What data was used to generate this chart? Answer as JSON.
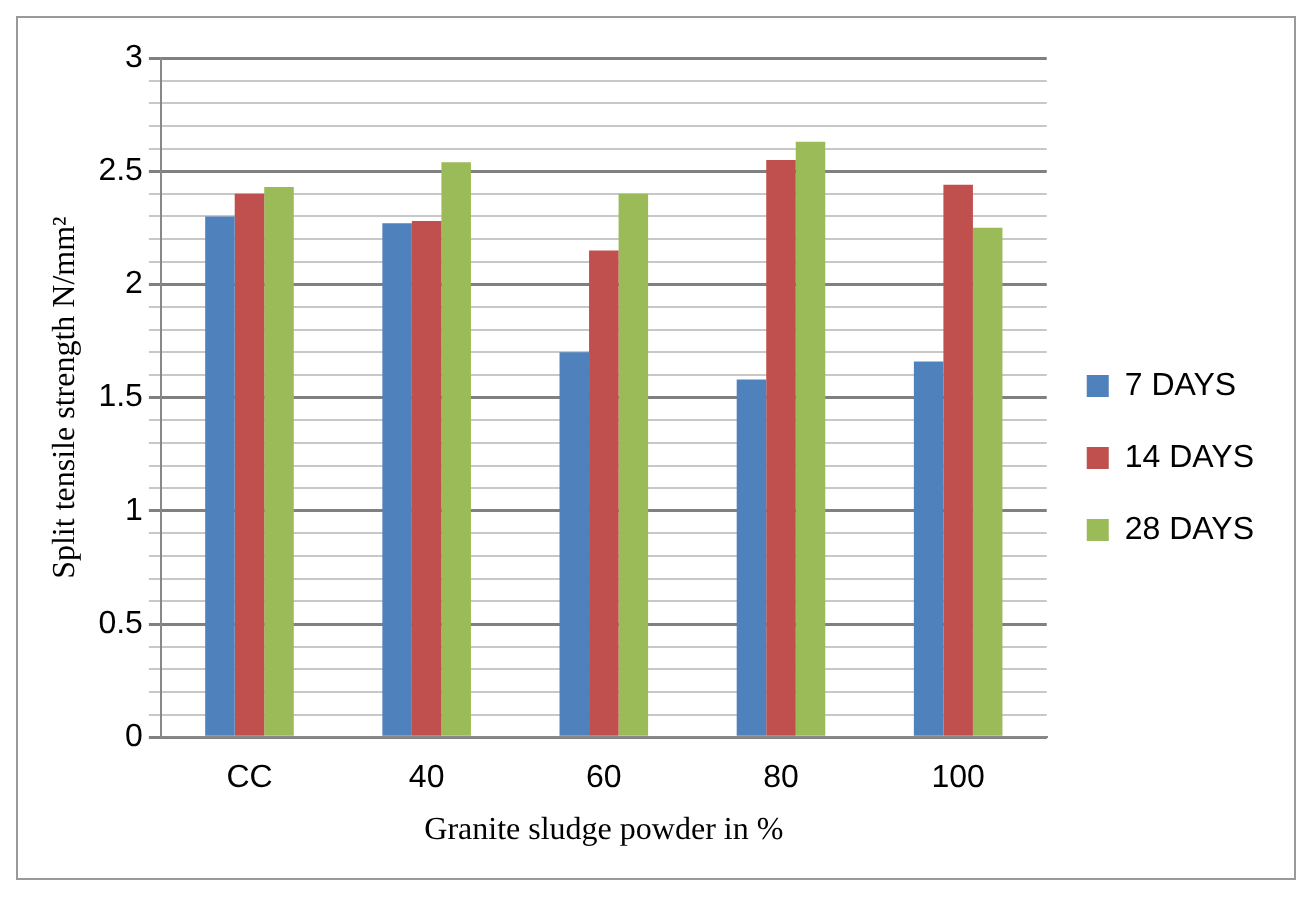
{
  "chart_data": {
    "type": "bar",
    "xlabel": "Granite sludge powder in %",
    "ylabel": "Split tensile strength N/mm²",
    "categories": [
      "CC",
      "40",
      "60",
      "80",
      "100"
    ],
    "series": [
      {
        "name": "7 DAYS",
        "color": "#4f81bd",
        "values": [
          2.3,
          2.27,
          1.7,
          1.58,
          1.66
        ]
      },
      {
        "name": "14 DAYS",
        "color": "#c0504d",
        "values": [
          2.4,
          2.28,
          2.15,
          2.55,
          2.44
        ]
      },
      {
        "name": "28 DAYS",
        "color": "#9bbb59",
        "values": [
          2.43,
          2.54,
          2.4,
          2.63,
          2.25
        ]
      }
    ],
    "ylim": [
      0,
      3
    ],
    "yticks": [
      0,
      {
        "value": 0.1,
        "label": null
      },
      {
        "value": 0.2,
        "label": null
      },
      {
        "value": 0.3,
        "label": null
      },
      {
        "value": 0.4,
        "label": null
      },
      0.5,
      {
        "value": 0.6,
        "label": null
      },
      {
        "value": 0.7,
        "label": null
      },
      {
        "value": 0.8,
        "label": null
      },
      {
        "value": 0.9,
        "label": null
      },
      1,
      {
        "value": 1.1,
        "label": null
      },
      {
        "value": 1.2,
        "label": null
      },
      {
        "value": 1.3,
        "label": null
      },
      {
        "value": 1.4,
        "label": null
      },
      1.5,
      {
        "value": 1.6,
        "label": null
      },
      {
        "value": 1.7,
        "label": null
      },
      {
        "value": 1.8,
        "label": null
      },
      {
        "value": 1.9,
        "label": null
      },
      2,
      {
        "value": 2.1,
        "label": null
      },
      {
        "value": 2.2,
        "label": null
      },
      {
        "value": 2.3,
        "label": null
      },
      {
        "value": 2.4,
        "label": null
      },
      2.5,
      {
        "value": 2.6,
        "label": null
      },
      {
        "value": 2.7,
        "label": null
      },
      {
        "value": 2.8,
        "label": null
      },
      {
        "value": 2.9,
        "label": null
      },
      3
    ],
    "grid": "y",
    "legend": "right"
  }
}
